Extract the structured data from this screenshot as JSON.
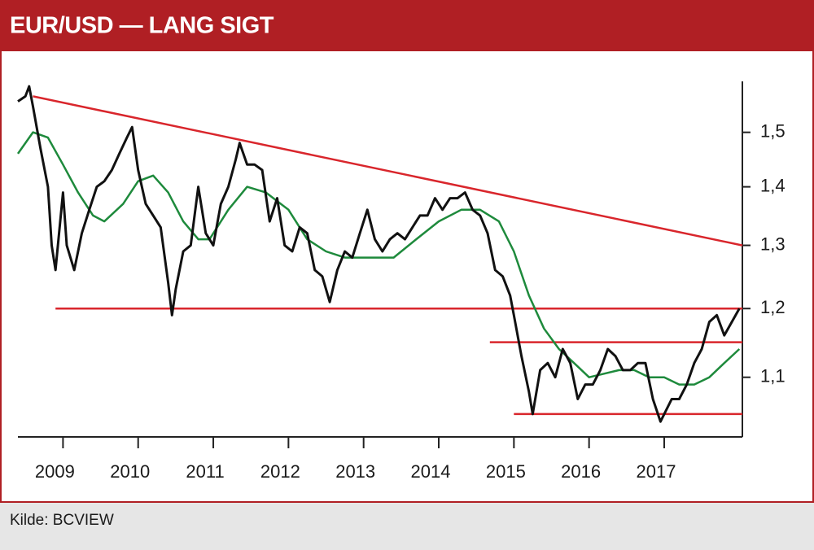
{
  "chart_data": {
    "type": "line",
    "title": "EUR/USD — LANG SIGT",
    "source": "Kilde: BCVIEW",
    "ylog": true,
    "xlim": [
      2008.4,
      2018.04
    ],
    "ylim": [
      1.02,
      1.6
    ],
    "xticks": [
      2009,
      2010,
      2011,
      2012,
      2013,
      2014,
      2015,
      2016,
      2017
    ],
    "yticks": [
      {
        "value": 1.1,
        "label": "1,1"
      },
      {
        "value": 1.2,
        "label": "1,2"
      },
      {
        "value": 1.3,
        "label": "1,3"
      },
      {
        "value": 1.4,
        "label": "1,4"
      },
      {
        "value": 1.5,
        "label": "1,5"
      }
    ],
    "series": [
      {
        "color": "#111111",
        "x": [
          2008.4,
          2008.5,
          2008.55,
          2008.6,
          2008.7,
          2008.8,
          2008.85,
          2008.9,
          2009.0,
          2009.05,
          2009.15,
          2009.25,
          2009.35,
          2009.45,
          2009.55,
          2009.65,
          2009.75,
          2009.85,
          2009.92,
          2010.0,
          2010.1,
          2010.2,
          2010.3,
          2010.4,
          2010.45,
          2010.5,
          2010.6,
          2010.7,
          2010.8,
          2010.9,
          2011.0,
          2011.1,
          2011.2,
          2011.3,
          2011.35,
          2011.45,
          2011.55,
          2011.65,
          2011.75,
          2011.85,
          2011.95,
          2012.05,
          2012.15,
          2012.25,
          2012.35,
          2012.45,
          2012.55,
          2012.65,
          2012.75,
          2012.85,
          2012.95,
          2013.05,
          2013.15,
          2013.25,
          2013.35,
          2013.45,
          2013.55,
          2013.65,
          2013.75,
          2013.85,
          2013.95,
          2014.05,
          2014.15,
          2014.25,
          2014.35,
          2014.45,
          2014.55,
          2014.65,
          2014.75,
          2014.85,
          2014.95,
          2015.0,
          2015.1,
          2015.2,
          2015.25,
          2015.35,
          2015.45,
          2015.55,
          2015.65,
          2015.75,
          2015.85,
          2015.95,
          2016.05,
          2016.15,
          2016.25,
          2016.35,
          2016.45,
          2016.55,
          2016.65,
          2016.75,
          2016.85,
          2016.95,
          2017.0,
          2017.1,
          2017.2,
          2017.3,
          2017.4,
          2017.5,
          2017.6,
          2017.7,
          2017.8,
          2017.9,
          2018.0
        ],
        "values": [
          1.56,
          1.57,
          1.59,
          1.55,
          1.47,
          1.4,
          1.3,
          1.26,
          1.39,
          1.3,
          1.26,
          1.32,
          1.36,
          1.4,
          1.41,
          1.43,
          1.46,
          1.49,
          1.51,
          1.43,
          1.37,
          1.35,
          1.33,
          1.24,
          1.19,
          1.23,
          1.29,
          1.3,
          1.4,
          1.32,
          1.3,
          1.37,
          1.4,
          1.45,
          1.48,
          1.44,
          1.44,
          1.43,
          1.34,
          1.38,
          1.3,
          1.29,
          1.33,
          1.32,
          1.26,
          1.25,
          1.21,
          1.26,
          1.29,
          1.28,
          1.32,
          1.36,
          1.31,
          1.29,
          1.31,
          1.32,
          1.31,
          1.33,
          1.35,
          1.35,
          1.38,
          1.36,
          1.38,
          1.38,
          1.39,
          1.36,
          1.35,
          1.32,
          1.26,
          1.25,
          1.22,
          1.19,
          1.13,
          1.08,
          1.05,
          1.11,
          1.12,
          1.1,
          1.14,
          1.12,
          1.07,
          1.09,
          1.09,
          1.11,
          1.14,
          1.13,
          1.11,
          1.11,
          1.12,
          1.12,
          1.07,
          1.04,
          1.05,
          1.07,
          1.07,
          1.09,
          1.12,
          1.14,
          1.18,
          1.19,
          1.16,
          1.18,
          1.2
        ]
      },
      {
        "color": "#1e8a3c",
        "x": [
          2008.4,
          2008.6,
          2008.8,
          2009.0,
          2009.2,
          2009.4,
          2009.55,
          2009.8,
          2010.0,
          2010.2,
          2010.4,
          2010.6,
          2010.8,
          2010.95,
          2011.2,
          2011.45,
          2011.7,
          2012.0,
          2012.25,
          2012.5,
          2012.75,
          2013.0,
          2013.4,
          2013.7,
          2014.0,
          2014.3,
          2014.55,
          2014.8,
          2015.0,
          2015.2,
          2015.4,
          2015.6,
          2015.8,
          2016.0,
          2016.2,
          2016.4,
          2016.6,
          2016.8,
          2017.0,
          2017.2,
          2017.4,
          2017.6,
          2017.8,
          2018.0
        ],
        "values": [
          1.46,
          1.5,
          1.49,
          1.44,
          1.39,
          1.35,
          1.34,
          1.37,
          1.41,
          1.42,
          1.39,
          1.34,
          1.31,
          1.31,
          1.36,
          1.4,
          1.39,
          1.36,
          1.31,
          1.29,
          1.28,
          1.28,
          1.28,
          1.31,
          1.34,
          1.36,
          1.36,
          1.34,
          1.29,
          1.22,
          1.17,
          1.14,
          1.12,
          1.1,
          1.105,
          1.11,
          1.11,
          1.1,
          1.1,
          1.09,
          1.09,
          1.1,
          1.12,
          1.14
        ]
      },
      {
        "color": "#d9262c",
        "x": [
          2008.6,
          2018.04
        ],
        "values": [
          1.57,
          1.3
        ]
      },
      {
        "color": "#d9262c",
        "x": [
          2008.9,
          2018.04
        ],
        "values": [
          1.2,
          1.2
        ]
      },
      {
        "color": "#d9262c",
        "x": [
          2014.68,
          2018.04
        ],
        "values": [
          1.15,
          1.15
        ]
      },
      {
        "color": "#d9262c",
        "x": [
          2015.0,
          2018.04
        ],
        "values": [
          1.05,
          1.05
        ]
      }
    ]
  }
}
